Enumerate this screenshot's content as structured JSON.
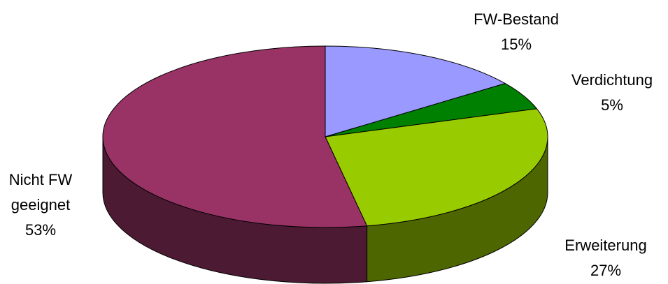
{
  "chart_data": {
    "type": "pie3d",
    "categories": [
      "FW-Bestand",
      "Verdichtung",
      "Erweiterung",
      "Nicht FW geeignet"
    ],
    "values": [
      15,
      5,
      27,
      53
    ],
    "value_labels": [
      "15%",
      "5%",
      "27%",
      "53%"
    ],
    "colors": [
      "#9999ff",
      "#008000",
      "#99cc00",
      "#993366"
    ]
  }
}
